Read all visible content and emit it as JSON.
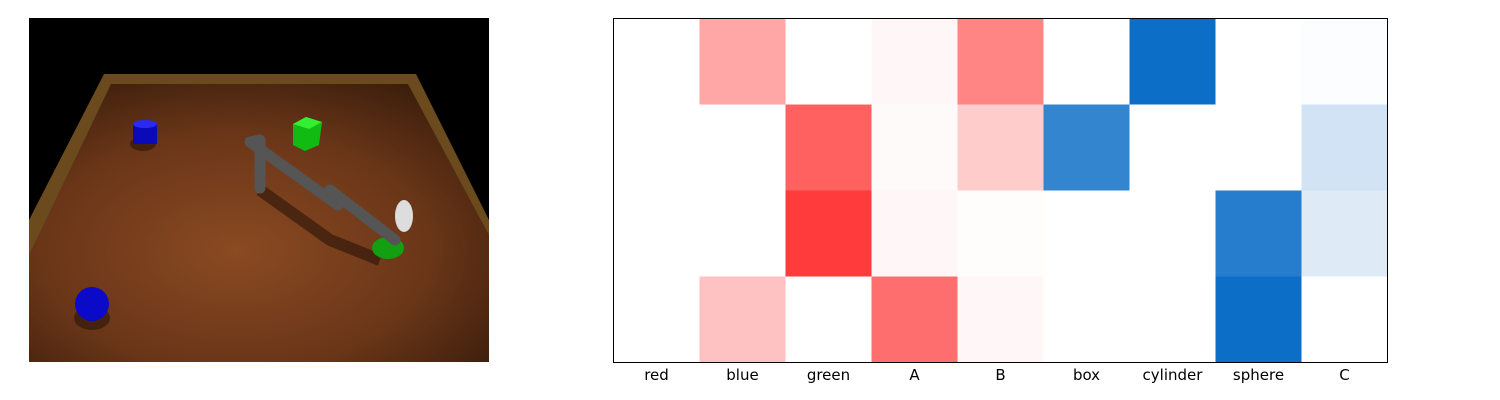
{
  "chart_data": {
    "type": "heatmap",
    "categories": [
      "red",
      "blue",
      "green",
      "A",
      "B",
      "box",
      "cylinder",
      "sphere",
      "C"
    ],
    "rows": [
      [
        0,
        0.35,
        0,
        0.03,
        0.48,
        0,
        -0.95,
        0,
        -0.01
      ],
      [
        0,
        0,
        0.62,
        0.02,
        0.2,
        -0.8,
        0,
        0,
        -0.18
      ],
      [
        0,
        0,
        0.77,
        0.03,
        0.01,
        0,
        0,
        -0.85,
        -0.13
      ],
      [
        0,
        0.24,
        0,
        0.57,
        0.03,
        0,
        0,
        -0.95,
        0
      ]
    ],
    "zlim": [
      -1,
      1
    ],
    "colors": [
      "#0066c4",
      "#ffffff",
      "#ff0000"
    ]
  }
}
